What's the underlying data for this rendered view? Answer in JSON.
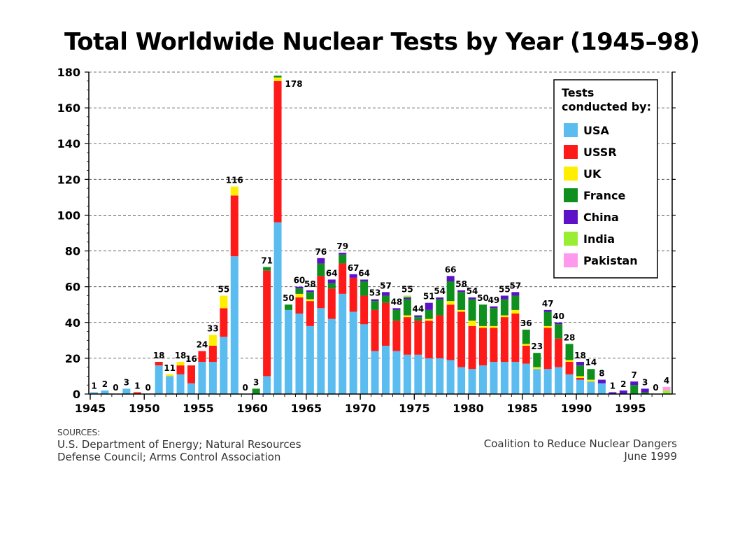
{
  "title": "Total Worldwide Nuclear Tests by Year",
  "title_range": "(1945–98)",
  "sources_header": "SOURCES:",
  "sources_line1": "U.S. Department of Energy; Natural Resources",
  "sources_line2": "Defense Council; Arms Control Association",
  "credit_line1": "Coalition to Reduce Nuclear Dangers",
  "credit_line2": "June 1999",
  "chart_data": {
    "type": "bar",
    "stacked": true,
    "title": "Total Worldwide Nuclear Tests by Year",
    "xlabel": "",
    "ylabel": "",
    "ylim": [
      0,
      180
    ],
    "yticks": [
      0,
      20,
      40,
      60,
      80,
      100,
      120,
      140,
      160,
      180
    ],
    "xticks": [
      1945,
      1950,
      1955,
      1960,
      1965,
      1970,
      1975,
      1980,
      1985,
      1990,
      1995
    ],
    "grid": "horizontal dashed",
    "legend_title": "Tests conducted by:",
    "legend_position": "top-right",
    "years": [
      1945,
      1946,
      1947,
      1948,
      1949,
      1950,
      1951,
      1952,
      1953,
      1954,
      1955,
      1956,
      1957,
      1958,
      1959,
      1960,
      1961,
      1962,
      1963,
      1964,
      1965,
      1966,
      1967,
      1968,
      1969,
      1970,
      1971,
      1972,
      1973,
      1974,
      1975,
      1976,
      1977,
      1978,
      1979,
      1980,
      1981,
      1982,
      1983,
      1984,
      1985,
      1986,
      1987,
      1988,
      1989,
      1990,
      1991,
      1992,
      1993,
      1994,
      1995,
      1996,
      1997,
      1998
    ],
    "totals": [
      1,
      2,
      0,
      3,
      1,
      0,
      18,
      11,
      18,
      16,
      24,
      33,
      55,
      116,
      0,
      3,
      71,
      178,
      50,
      60,
      58,
      76,
      64,
      79,
      67,
      64,
      53,
      57,
      48,
      55,
      44,
      51,
      54,
      66,
      58,
      54,
      50,
      49,
      55,
      57,
      36,
      23,
      47,
      40,
      28,
      18,
      14,
      8,
      1,
      2,
      7,
      3,
      0,
      4
    ],
    "series": [
      {
        "name": "USA",
        "color": "#5bbcf0",
        "values": [
          1,
          2,
          0,
          3,
          0,
          0,
          16,
          10,
          11,
          6,
          18,
          18,
          32,
          77,
          0,
          0,
          10,
          96,
          47,
          45,
          38,
          48,
          42,
          56,
          46,
          39,
          24,
          27,
          24,
          22,
          22,
          20,
          20,
          19,
          15,
          14,
          16,
          18,
          18,
          18,
          17,
          14,
          14,
          15,
          11,
          8,
          7,
          6,
          0,
          0,
          0,
          0,
          0,
          0
        ]
      },
      {
        "name": "USSR",
        "color": "#ff1a1a",
        "values": [
          0,
          0,
          0,
          0,
          1,
          0,
          2,
          0,
          5,
          10,
          6,
          9,
          16,
          34,
          0,
          0,
          59,
          79,
          0,
          9,
          14,
          18,
          17,
          17,
          19,
          16,
          23,
          24,
          17,
          21,
          19,
          21,
          24,
          31,
          31,
          24,
          21,
          19,
          25,
          27,
          10,
          0,
          23,
          16,
          7,
          1,
          0,
          0,
          0,
          0,
          0,
          0,
          0,
          0
        ]
      },
      {
        "name": "UK",
        "color": "#ffee00",
        "values": [
          0,
          0,
          0,
          0,
          0,
          0,
          0,
          1,
          2,
          0,
          0,
          6,
          7,
          5,
          0,
          0,
          0,
          2,
          0,
          2,
          1,
          0,
          0,
          0,
          0,
          0,
          0,
          0,
          0,
          1,
          0,
          1,
          0,
          2,
          1,
          3,
          1,
          1,
          1,
          2,
          1,
          1,
          1,
          0,
          1,
          1,
          1,
          0,
          0,
          0,
          0,
          0,
          0,
          0
        ]
      },
      {
        "name": "France",
        "color": "#0e8f1e",
        "values": [
          0,
          0,
          0,
          0,
          0,
          0,
          0,
          0,
          0,
          0,
          0,
          0,
          0,
          0,
          0,
          3,
          2,
          1,
          3,
          3,
          4,
          7,
          3,
          5,
          0,
          8,
          5,
          4,
          6,
          9,
          2,
          5,
          9,
          11,
          10,
          12,
          12,
          10,
          9,
          8,
          8,
          8,
          8,
          8,
          9,
          6,
          6,
          0,
          0,
          0,
          5,
          1,
          0,
          0
        ]
      },
      {
        "name": "China",
        "color": "#5e12c7",
        "values": [
          0,
          0,
          0,
          0,
          0,
          0,
          0,
          0,
          0,
          0,
          0,
          0,
          0,
          0,
          0,
          0,
          0,
          0,
          0,
          1,
          1,
          3,
          2,
          1,
          2,
          1,
          1,
          2,
          1,
          1,
          1,
          4,
          1,
          3,
          1,
          1,
          0,
          1,
          2,
          2,
          0,
          0,
          1,
          1,
          0,
          2,
          0,
          2,
          1,
          2,
          2,
          2,
          0,
          0
        ]
      },
      {
        "name": "India",
        "color": "#99ee33",
        "values": [
          0,
          0,
          0,
          0,
          0,
          0,
          0,
          0,
          0,
          0,
          0,
          0,
          0,
          0,
          0,
          0,
          0,
          0,
          0,
          0,
          0,
          0,
          0,
          0,
          0,
          0,
          0,
          0,
          0,
          1,
          0,
          0,
          0,
          0,
          0,
          0,
          0,
          0,
          0,
          0,
          0,
          0,
          0,
          0,
          0,
          0,
          0,
          0,
          0,
          0,
          0,
          0,
          0,
          2
        ]
      },
      {
        "name": "Pakistan",
        "color": "#ff99ee",
        "values": [
          0,
          0,
          0,
          0,
          0,
          0,
          0,
          0,
          0,
          0,
          0,
          0,
          0,
          0,
          0,
          0,
          0,
          0,
          0,
          0,
          0,
          0,
          0,
          0,
          0,
          0,
          0,
          0,
          0,
          0,
          0,
          0,
          0,
          0,
          0,
          0,
          0,
          0,
          0,
          0,
          0,
          0,
          0,
          0,
          0,
          0,
          0,
          0,
          0,
          0,
          0,
          0,
          0,
          2
        ]
      }
    ]
  }
}
